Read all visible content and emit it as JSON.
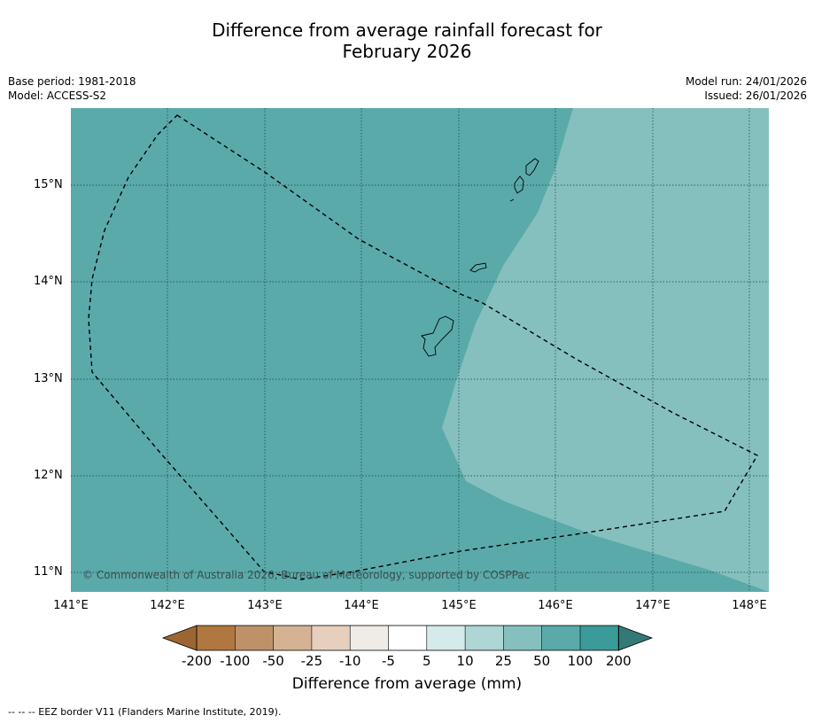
{
  "title": {
    "line1": "Difference from average rainfall forecast for",
    "line2": "February 2026"
  },
  "meta_left": {
    "base_period": "Base period: 1981-2018",
    "model": "Model: ACCESS-S2"
  },
  "meta_right": {
    "model_run": "Model run: 24/01/2026",
    "issued": "Issued: 26/01/2026"
  },
  "map": {
    "lon_labels": [
      "141°E",
      "142°E",
      "143°E",
      "144°E",
      "145°E",
      "146°E",
      "147°E",
      "148°E"
    ],
    "lat_labels": [
      "15°N",
      "14°N",
      "13°N",
      "12°N",
      "11°N"
    ],
    "copyright": "© Commonwealth of Australia 2026, Bureau of Meteorology, supported by COSPPac",
    "regions": [
      {
        "category": "50 to 100",
        "color": "#5aaaaa"
      },
      {
        "category": "25 to 50",
        "color": "#85c0bf"
      }
    ]
  },
  "colorbar": {
    "title": "Difference from average (mm)",
    "ticks": [
      "-200",
      "-100",
      "-50",
      "-25",
      "-10",
      "-5",
      "5",
      "10",
      "25",
      "50",
      "100",
      "200"
    ],
    "colors": [
      "#9c6633",
      "#b07740",
      "#bf9168",
      "#d4b293",
      "#e6d0bd",
      "#efebe7",
      "#ffffff",
      "#d6ebe9",
      "#add6d4",
      "#85c0bf",
      "#5aaaaa",
      "#3a9b98",
      "#337a77"
    ]
  },
  "footnote": "--  --  -- EEZ border V11 (Flanders Marine Institute, 2019)."
}
